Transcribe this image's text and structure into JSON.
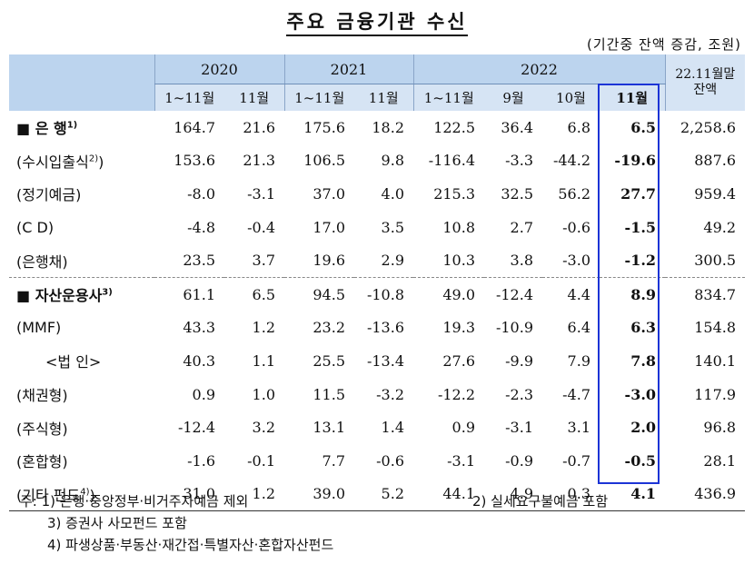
{
  "title": "주요 금융기관 수신",
  "unit": "(기간중 잔액 증감, 조원)",
  "header": {
    "years": [
      "2020",
      "2021",
      "2022"
    ],
    "periods": [
      "1~11월",
      "11월",
      "1~11월",
      "11월",
      "1~11월",
      "9월",
      "10월",
      "11월"
    ],
    "balance_line1": "22.11월말",
    "balance_line2": "잔액"
  },
  "rows": [
    {
      "label": "■ 은 행",
      "sup": "1)",
      "type": "main",
      "values": [
        "164.7",
        "21.6",
        "175.6",
        "18.2",
        "122.5",
        "36.4",
        "6.8",
        "6.5",
        "2,258.6"
      ]
    },
    {
      "label": "(수시입출식",
      "sup": "2)",
      "suffix": ")",
      "type": "sub",
      "values": [
        "153.6",
        "21.3",
        "106.5",
        "9.8",
        "-116.4",
        "-3.3",
        "-44.2",
        "-19.6",
        "887.6"
      ]
    },
    {
      "label": "(정기예금)",
      "type": "sub",
      "values": [
        "-8.0",
        "-3.1",
        "37.0",
        "4.0",
        "215.3",
        "32.5",
        "56.2",
        "27.7",
        "959.4"
      ]
    },
    {
      "label": "(C  D)",
      "type": "sub",
      "values": [
        "-4.8",
        "-0.4",
        "17.0",
        "3.5",
        "10.8",
        "2.7",
        "-0.6",
        "-1.5",
        "49.2"
      ]
    },
    {
      "label": "(은행채)",
      "type": "sub",
      "values": [
        "23.5",
        "3.7",
        "19.6",
        "2.9",
        "10.3",
        "3.8",
        "-3.0",
        "-1.2",
        "300.5"
      ]
    },
    {
      "label": "■ 자산운용사",
      "sup": "3)",
      "type": "main",
      "values": [
        "61.1",
        "6.5",
        "94.5",
        "-10.8",
        "49.0",
        "-12.4",
        "4.4",
        "8.9",
        "834.7"
      ]
    },
    {
      "label": "(MMF)",
      "type": "sub",
      "values": [
        "43.3",
        "1.2",
        "23.2",
        "-13.6",
        "19.3",
        "-10.9",
        "6.4",
        "6.3",
        "154.8"
      ]
    },
    {
      "label": "<법 인>",
      "type": "indent",
      "values": [
        "40.3",
        "1.1",
        "25.5",
        "-13.4",
        "27.6",
        "-9.9",
        "7.9",
        "7.8",
        "140.1"
      ]
    },
    {
      "label": "(채권형)",
      "type": "sub",
      "values": [
        "0.9",
        "1.0",
        "11.5",
        "-3.2",
        "-12.2",
        "-2.3",
        "-4.7",
        "-3.0",
        "117.9"
      ]
    },
    {
      "label": "(주식형)",
      "type": "sub",
      "values": [
        "-12.4",
        "3.2",
        "13.1",
        "1.4",
        "0.9",
        "-3.1",
        "3.1",
        "2.0",
        "96.8"
      ]
    },
    {
      "label": "(혼합형)",
      "type": "sub",
      "values": [
        "-1.6",
        "-0.1",
        "7.7",
        "-0.6",
        "-3.1",
        "-0.9",
        "-0.7",
        "-0.5",
        "28.1"
      ]
    },
    {
      "label": "(기타 펀드",
      "sup": "4)",
      "suffix": ")",
      "type": "sub",
      "values": [
        "31.0",
        "1.2",
        "39.0",
        "5.2",
        "44.1",
        "4.9",
        "0.3",
        "4.1",
        "436.9"
      ]
    }
  ],
  "notes": {
    "prefix": "주:",
    "n1": "1) 은행·중앙정부·비거주자예금 제외",
    "n2": "2) 실세요구불예금 포함",
    "n3": "3) 증권사 사모펀드 포함",
    "n4": "4) 파생상품·부동산·재간접·특별자산·혼합자산펀드"
  },
  "colors": {
    "header_dark": "#bcd4ee",
    "header_light": "#d6e4f4",
    "highlight_border": "#1c34d6"
  }
}
